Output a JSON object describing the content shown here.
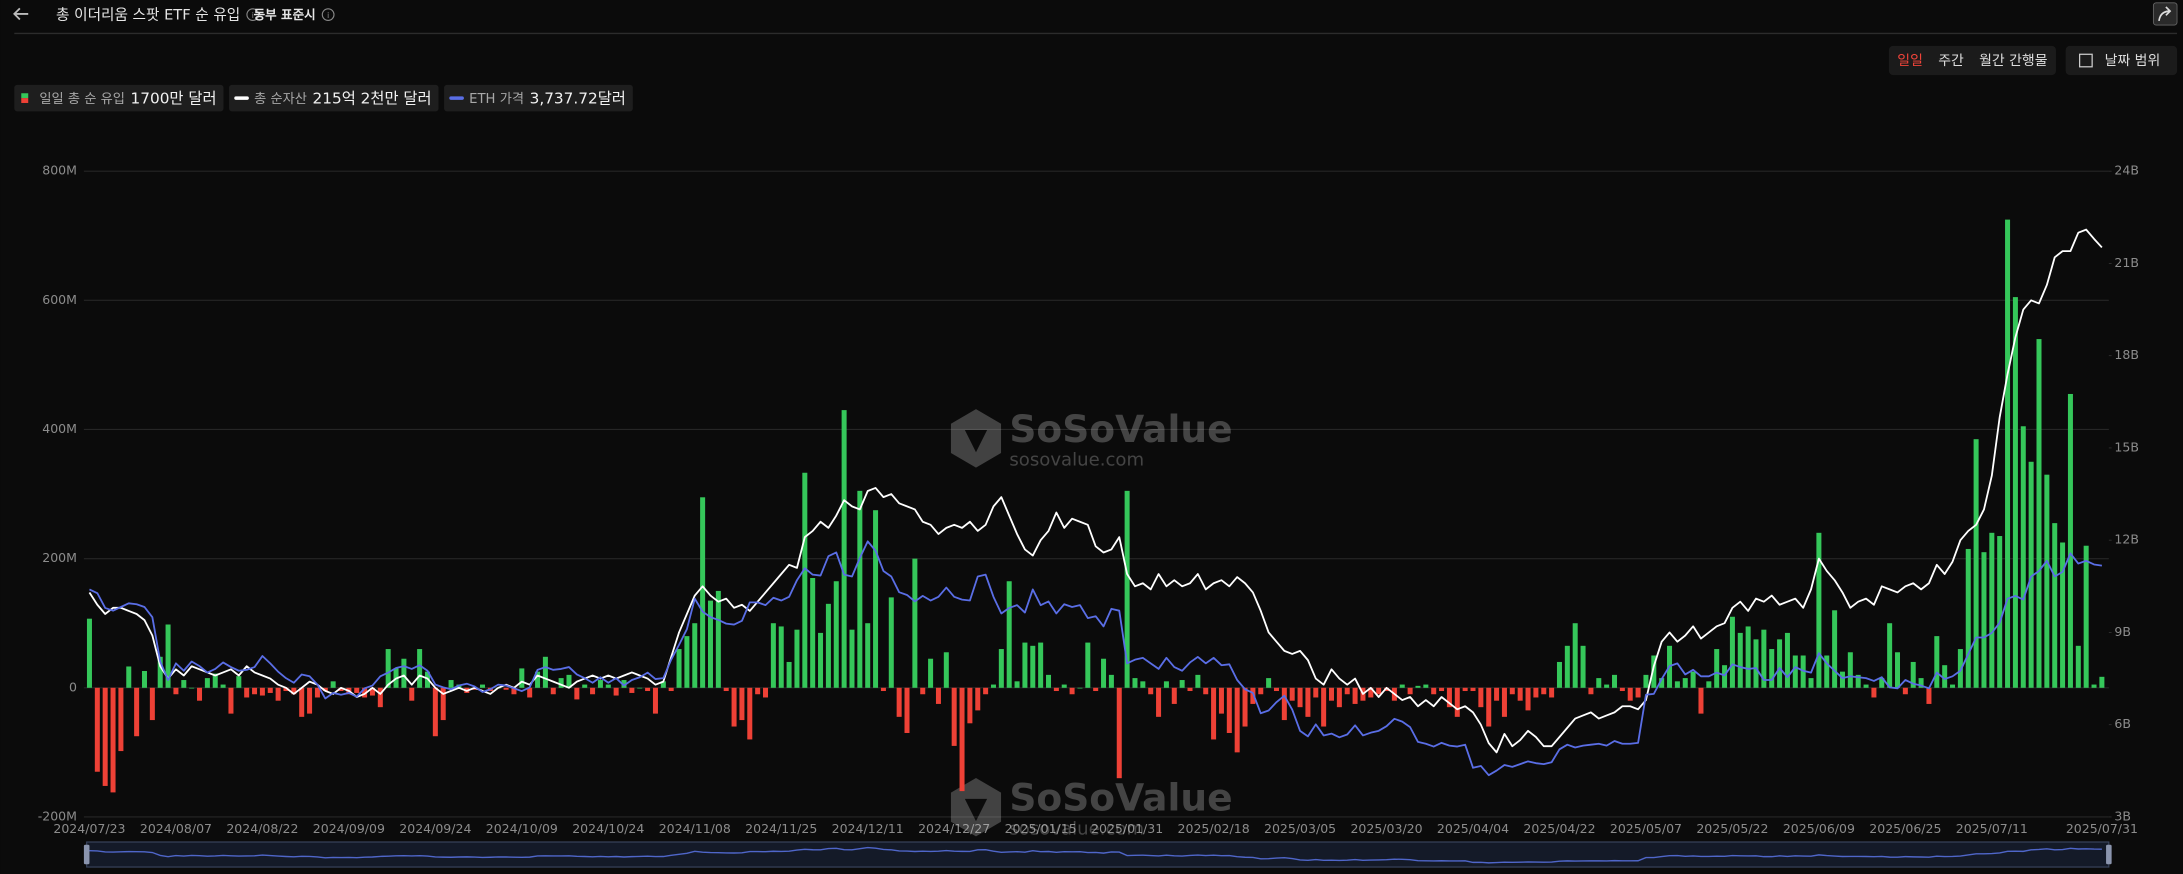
{
  "header": {
    "title": "총 이더리움 스팟 ETF 순 유입",
    "timezone": "동부 표준시"
  },
  "controls": {
    "periods": [
      "일일",
      "주간",
      "월간 간행물"
    ],
    "active": 0,
    "date_range": "날짜 범위"
  },
  "watermark": {
    "brand": "SoSoValue",
    "url": "sosovalue.com"
  },
  "chart_data": {
    "type": "bar",
    "categories": [
      "2024/07/23",
      null,
      null,
      null,
      null,
      null,
      null,
      null,
      null,
      null,
      null,
      "2024/08/07",
      null,
      null,
      null,
      null,
      null,
      null,
      null,
      null,
      null,
      null,
      "2024/08/22",
      null,
      null,
      null,
      null,
      null,
      null,
      null,
      null,
      null,
      null,
      "2024/09/09",
      null,
      null,
      null,
      null,
      null,
      null,
      null,
      null,
      null,
      null,
      "2024/09/24",
      null,
      null,
      null,
      null,
      null,
      null,
      null,
      null,
      null,
      null,
      "2024/10/09",
      null,
      null,
      null,
      null,
      null,
      null,
      null,
      null,
      null,
      null,
      "2024/10/24",
      null,
      null,
      null,
      null,
      null,
      null,
      null,
      null,
      null,
      null,
      "2024/11/08",
      null,
      null,
      null,
      null,
      null,
      null,
      null,
      null,
      null,
      null,
      "2024/11/25",
      null,
      null,
      null,
      null,
      null,
      null,
      null,
      null,
      null,
      null,
      "2024/12/11",
      null,
      null,
      null,
      null,
      null,
      null,
      null,
      null,
      null,
      null,
      "2024/12/27",
      null,
      null,
      null,
      null,
      null,
      null,
      null,
      null,
      null,
      null,
      "2025/01/15",
      null,
      null,
      null,
      null,
      null,
      null,
      null,
      null,
      null,
      null,
      "2025/01/31",
      null,
      null,
      null,
      null,
      null,
      null,
      null,
      null,
      null,
      null,
      "2025/02/18",
      null,
      null,
      null,
      null,
      null,
      null,
      null,
      null,
      null,
      null,
      "2025/03/05",
      null,
      null,
      null,
      null,
      null,
      null,
      null,
      null,
      null,
      null,
      "2025/03/20",
      null,
      null,
      null,
      null,
      null,
      null,
      null,
      null,
      null,
      null,
      "2025/04/04",
      null,
      null,
      null,
      null,
      null,
      null,
      null,
      null,
      null,
      null,
      "2025/04/22",
      null,
      null,
      null,
      null,
      null,
      null,
      null,
      null,
      null,
      null,
      "2025/05/07",
      null,
      null,
      null,
      null,
      null,
      null,
      null,
      null,
      null,
      null,
      "2025/05/22",
      null,
      null,
      null,
      null,
      null,
      null,
      null,
      null,
      null,
      null,
      "2025/06/09",
      null,
      null,
      null,
      null,
      null,
      null,
      null,
      null,
      null,
      null,
      "2025/06/25",
      null,
      null,
      null,
      null,
      null,
      null,
      null,
      null,
      null,
      null,
      "2025/07/11",
      null,
      null,
      null,
      null,
      null,
      null,
      null,
      null,
      null,
      null,
      null,
      null,
      null,
      "2025/07/31"
    ],
    "ylim": [
      -200,
      800
    ],
    "yticks": [
      {
        "value": -200,
        "label": "-200M"
      },
      0,
      {
        "value": 200,
        "label": "200M"
      },
      {
        "value": 400,
        "label": "400M"
      },
      {
        "value": 600,
        "label": "600M"
      },
      {
        "value": 800,
        "label": "800M"
      }
    ],
    "y2lim": [
      3,
      24
    ],
    "y2ticks": [
      {
        "value": 3,
        "label": "3B"
      },
      {
        "value": 6,
        "label": "6B"
      },
      {
        "value": 9,
        "label": "9B"
      },
      {
        "value": 12,
        "label": "12B"
      },
      {
        "value": 15,
        "label": "15B"
      },
      {
        "value": 18,
        "label": "18B"
      },
      {
        "value": 21,
        "label": "21B"
      },
      {
        "value": 24,
        "label": "24B"
      }
    ],
    "grid": true,
    "series": [
      {
        "name": "일일 총 순 유입",
        "legend_value": "1700만 달러",
        "type": "bar",
        "color": "#35c75a",
        "negative_color": "#ee4136",
        "values": [
          107,
          -130,
          -152,
          -162,
          -98,
          33,
          -75,
          26,
          -50,
          48,
          98,
          -10,
          12,
          0,
          -20,
          15,
          22,
          5,
          -40,
          18,
          -15,
          -10,
          -12,
          -8,
          -20,
          -5,
          -10,
          -45,
          -40,
          -15,
          -5,
          10,
          -5,
          -10,
          -8,
          -15,
          -12,
          -30,
          60,
          30,
          45,
          -20,
          60,
          25,
          -75,
          -50,
          12,
          5,
          -8,
          -3,
          5,
          -5,
          0,
          -3,
          -10,
          30,
          -15,
          25,
          48,
          -10,
          15,
          20,
          -18,
          5,
          -10,
          12,
          5,
          -12,
          12,
          -8,
          0,
          -5,
          -40,
          10,
          -5,
          60,
          80,
          100,
          295,
          135,
          150,
          -5,
          -60,
          -50,
          -80,
          -10,
          -15,
          100,
          95,
          40,
          90,
          333,
          170,
          85,
          130,
          165,
          430,
          90,
          305,
          100,
          275,
          -5,
          140,
          -45,
          -70,
          200,
          -10,
          45,
          -25,
          55,
          -90,
          -160,
          -55,
          -35,
          -10,
          5,
          60,
          165,
          10,
          70,
          65,
          70,
          20,
          -5,
          5,
          -10,
          0,
          70,
          -5,
          45,
          20,
          -140,
          305,
          15,
          10,
          -10,
          -45,
          10,
          -25,
          12,
          -5,
          20,
          -10,
          -80,
          -40,
          -70,
          -100,
          -60,
          -25,
          -10,
          15,
          -5,
          -50,
          -20,
          -30,
          -45,
          -15,
          -60,
          -20,
          -30,
          -10,
          -25,
          -20,
          -15,
          -10,
          -5,
          -20,
          5,
          -10,
          3,
          5,
          -10,
          -5,
          -30,
          -45,
          -5,
          -5,
          -30,
          -60,
          -20,
          -45,
          -10,
          -20,
          -35,
          -15,
          -10,
          -15,
          40,
          65,
          100,
          65,
          -10,
          15,
          5,
          20,
          -5,
          -20,
          -15,
          20,
          50,
          15,
          65,
          10,
          15,
          25,
          -40,
          10,
          60,
          35,
          110,
          85,
          95,
          75,
          90,
          60,
          75,
          85,
          50,
          50,
          15,
          240,
          50,
          120,
          25,
          55,
          20,
          5,
          -15,
          15,
          100,
          55,
          -10,
          40,
          15,
          -25,
          80,
          35,
          5,
          60,
          215,
          385,
          210,
          240,
          235,
          725,
          605,
          405,
          350,
          540,
          330,
          255,
          225,
          455,
          65,
          220,
          5,
          17
        ]
      },
      {
        "name": "총 순자산",
        "legend_value": "215억 2천만 달러",
        "type": "line",
        "axis": "y2",
        "color": "#ffffff",
        "values": [
          10.3,
          9.9,
          9.6,
          9.8,
          9.8,
          9.7,
          9.6,
          9.4,
          8.9,
          7.9,
          7.5,
          7.8,
          7.6,
          7.9,
          7.8,
          7.7,
          7.6,
          7.7,
          7.8,
          7.6,
          7.9,
          7.7,
          7.6,
          7.5,
          7.3,
          7.2,
          7.0,
          7.2,
          7.4,
          7.3,
          7.1,
          7.0,
          7.2,
          7.1,
          6.9,
          7.0,
          7.2,
          7.0,
          7.3,
          7.5,
          7.6,
          7.3,
          7.6,
          7.5,
          7.2,
          7.0,
          7.1,
          7.2,
          7.1,
          7.2,
          7.1,
          7.0,
          7.2,
          7.3,
          7.2,
          7.4,
          7.3,
          7.6,
          7.5,
          7.4,
          7.3,
          7.2,
          7.4,
          7.5,
          7.6,
          7.5,
          7.6,
          7.5,
          7.6,
          7.7,
          7.6,
          7.5,
          7.3,
          7.4,
          8.2,
          9.0,
          9.6,
          10.2,
          10.5,
          10.2,
          10.0,
          10.1,
          9.8,
          9.9,
          9.7,
          10.0,
          10.3,
          10.6,
          10.9,
          11.2,
          11.1,
          12.1,
          12.3,
          12.6,
          12.4,
          12.8,
          13.3,
          13.1,
          13.0,
          13.6,
          13.7,
          13.4,
          13.5,
          13.2,
          13.1,
          13.0,
          12.6,
          12.5,
          12.2,
          12.4,
          12.5,
          12.4,
          12.6,
          12.3,
          12.5,
          13.1,
          13.4,
          12.8,
          12.2,
          11.7,
          11.5,
          12.0,
          12.3,
          12.9,
          12.4,
          12.7,
          12.6,
          12.5,
          11.8,
          11.6,
          11.7,
          12.1,
          10.9,
          10.5,
          10.6,
          10.4,
          10.9,
          10.5,
          10.7,
          10.5,
          10.6,
          10.9,
          10.4,
          10.6,
          10.7,
          10.5,
          10.8,
          10.6,
          10.3,
          9.7,
          9.0,
          8.7,
          8.4,
          8.3,
          8.4,
          8.1,
          7.5,
          7.3,
          7.8,
          7.5,
          7.3,
          7.5,
          7.0,
          7.2,
          6.9,
          7.2,
          7.0,
          6.8,
          6.9,
          6.6,
          6.8,
          6.6,
          6.9,
          6.7,
          6.5,
          6.6,
          6.4,
          6.0,
          5.4,
          5.1,
          5.7,
          5.3,
          5.5,
          5.8,
          5.6,
          5.3,
          5.3,
          5.6,
          5.9,
          6.2,
          6.3,
          6.4,
          6.2,
          6.3,
          6.4,
          6.6,
          6.6,
          6.5,
          6.8,
          7.9,
          8.7,
          9.0,
          8.7,
          8.9,
          9.2,
          8.8,
          9.0,
          9.2,
          9.3,
          9.8,
          10.0,
          9.7,
          10.1,
          10.0,
          10.2,
          9.9,
          10.0,
          10.1,
          9.8,
          10.4,
          11.4,
          11.0,
          10.7,
          10.3,
          9.8,
          10.0,
          10.1,
          9.9,
          10.5,
          10.4,
          10.3,
          10.5,
          10.6,
          10.4,
          10.6,
          11.2,
          10.9,
          11.3,
          12.0,
          12.3,
          12.5,
          13.0,
          14.1,
          16.0,
          17.4,
          18.6,
          19.5,
          19.8,
          19.7,
          20.3,
          21.2,
          21.4,
          21.4,
          22.0,
          22.1,
          21.8,
          21.52
        ]
      },
      {
        "name": "ETH 가격",
        "legend_value": "3,737.72달러",
        "type": "line",
        "axis": "price",
        "color": "#5a6ee6",
        "values": [
          3480,
          3440,
          3280,
          3250,
          3290,
          3330,
          3320,
          3290,
          3180,
          2700,
          2500,
          2680,
          2600,
          2700,
          2650,
          2580,
          2620,
          2690,
          2640,
          2600,
          2610,
          2640,
          2760,
          2680,
          2590,
          2520,
          2470,
          2560,
          2540,
          2450,
          2300,
          2360,
          2340,
          2360,
          2320,
          2410,
          2440,
          2540,
          2580,
          2630,
          2650,
          2620,
          2660,
          2600,
          2450,
          2420,
          2400,
          2440,
          2460,
          2430,
          2370,
          2400,
          2450,
          2440,
          2410,
          2380,
          2420,
          2610,
          2640,
          2610,
          2620,
          2640,
          2560,
          2520,
          2470,
          2530,
          2470,
          2520,
          2440,
          2500,
          2530,
          2580,
          2510,
          2520,
          2720,
          2880,
          3050,
          3380,
          3240,
          3180,
          3150,
          3110,
          3100,
          3140,
          3340,
          3340,
          3310,
          3390,
          3360,
          3400,
          3580,
          3710,
          3640,
          3630,
          3840,
          3880,
          3640,
          3620,
          3820,
          4000,
          3900,
          3680,
          3620,
          3450,
          3420,
          3350,
          3410,
          3360,
          3400,
          3500,
          3400,
          3370,
          3360,
          3620,
          3640,
          3400,
          3220,
          3280,
          3310,
          3230,
          3480,
          3310,
          3350,
          3220,
          3320,
          3290,
          3310,
          3170,
          3190,
          3080,
          3270,
          3250,
          2680,
          2720,
          2740,
          2680,
          2620,
          2740,
          2640,
          2600,
          2690,
          2750,
          2680,
          2740,
          2660,
          2670,
          2500,
          2400,
          2360,
          2140,
          2170,
          2260,
          2330,
          2180,
          1950,
          1890,
          2020,
          1900,
          1920,
          1880,
          1910,
          2010,
          1900,
          1930,
          1950,
          2000,
          2080,
          2050,
          1990,
          1830,
          1810,
          1780,
          1820,
          1790,
          1780,
          1800,
          1550,
          1570,
          1470,
          1520,
          1580,
          1560,
          1590,
          1620,
          1600,
          1590,
          1610,
          1750,
          1800,
          1770,
          1790,
          1800,
          1810,
          1790,
          1840,
          1810,
          1810,
          1820,
          2340,
          2350,
          2510,
          2650,
          2680,
          2560,
          2610,
          2540,
          2540,
          2580,
          2550,
          2670,
          2640,
          2620,
          2630,
          2500,
          2500,
          2630,
          2530,
          2640,
          2600,
          2580,
          2790,
          2680,
          2600,
          2520,
          2540,
          2530,
          2520,
          2490,
          2530,
          2420,
          2410,
          2500,
          2460,
          2440,
          2410,
          2580,
          2510,
          2540,
          2600,
          2780,
          2960,
          2960,
          3010,
          3120,
          3380,
          3410,
          3370,
          3620,
          3680,
          3790,
          3620,
          3670,
          3870,
          3760,
          3790,
          3750,
          3737.72
        ]
      }
    ]
  }
}
